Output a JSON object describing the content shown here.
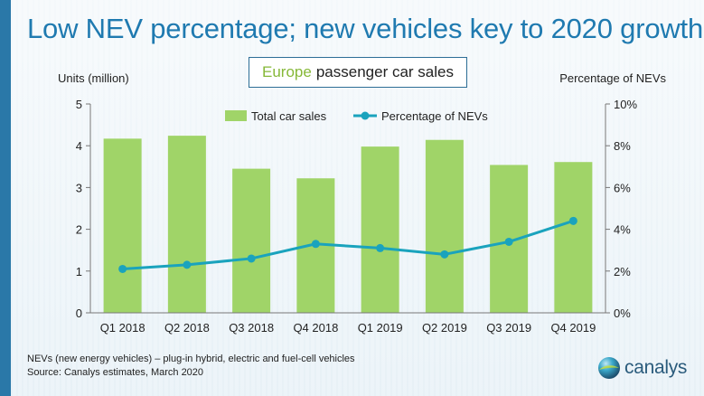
{
  "header": {
    "title": "Low NEV percentage; new vehicles key to 2020 growth",
    "subtitle_accent": "Europe",
    "subtitle_rest": "passenger car sales"
  },
  "axes": {
    "left_title": "Units (million)",
    "right_title": "Percentage of NEVs"
  },
  "footnotes": {
    "line1": "NEVs (new energy vehicles) – plug-in hybrid, electric and fuel-cell vehicles",
    "line2": "Source: Canalys estimates, March 2020"
  },
  "logo": {
    "text": "canalys",
    "icon": "globe-icon"
  },
  "colors": {
    "title": "#1f7ab0",
    "bars": "#a0d468",
    "line": "#1aa3bd",
    "accent": "#86b838"
  },
  "chart_data": {
    "type": "bar+line",
    "categories": [
      "Q1 2018",
      "Q2 2018",
      "Q3 2018",
      "Q4 2018",
      "Q1 2019",
      "Q2 2019",
      "Q3 2019",
      "Q4 2019"
    ],
    "series": [
      {
        "name": "Total car sales",
        "type": "bar",
        "axis": "left",
        "values": [
          4.17,
          4.24,
          3.45,
          3.22,
          3.98,
          4.14,
          3.54,
          3.61
        ]
      },
      {
        "name": "Percentage of NEVs",
        "type": "line",
        "axis": "right",
        "values": [
          2.1,
          2.3,
          2.6,
          3.3,
          3.1,
          2.8,
          3.4,
          4.4
        ]
      }
    ],
    "ylim_left": [
      0,
      5
    ],
    "left_ticks": [
      "0",
      "1",
      "2",
      "3",
      "4",
      "5"
    ],
    "ylim_right": [
      0,
      10
    ],
    "right_ticks": [
      "0%",
      "2%",
      "4%",
      "6%",
      "8%",
      "10%"
    ],
    "ylabel_left": "Units (million)",
    "ylabel_right": "Percentage of NEVs",
    "legend": "top-center",
    "grid": false
  }
}
